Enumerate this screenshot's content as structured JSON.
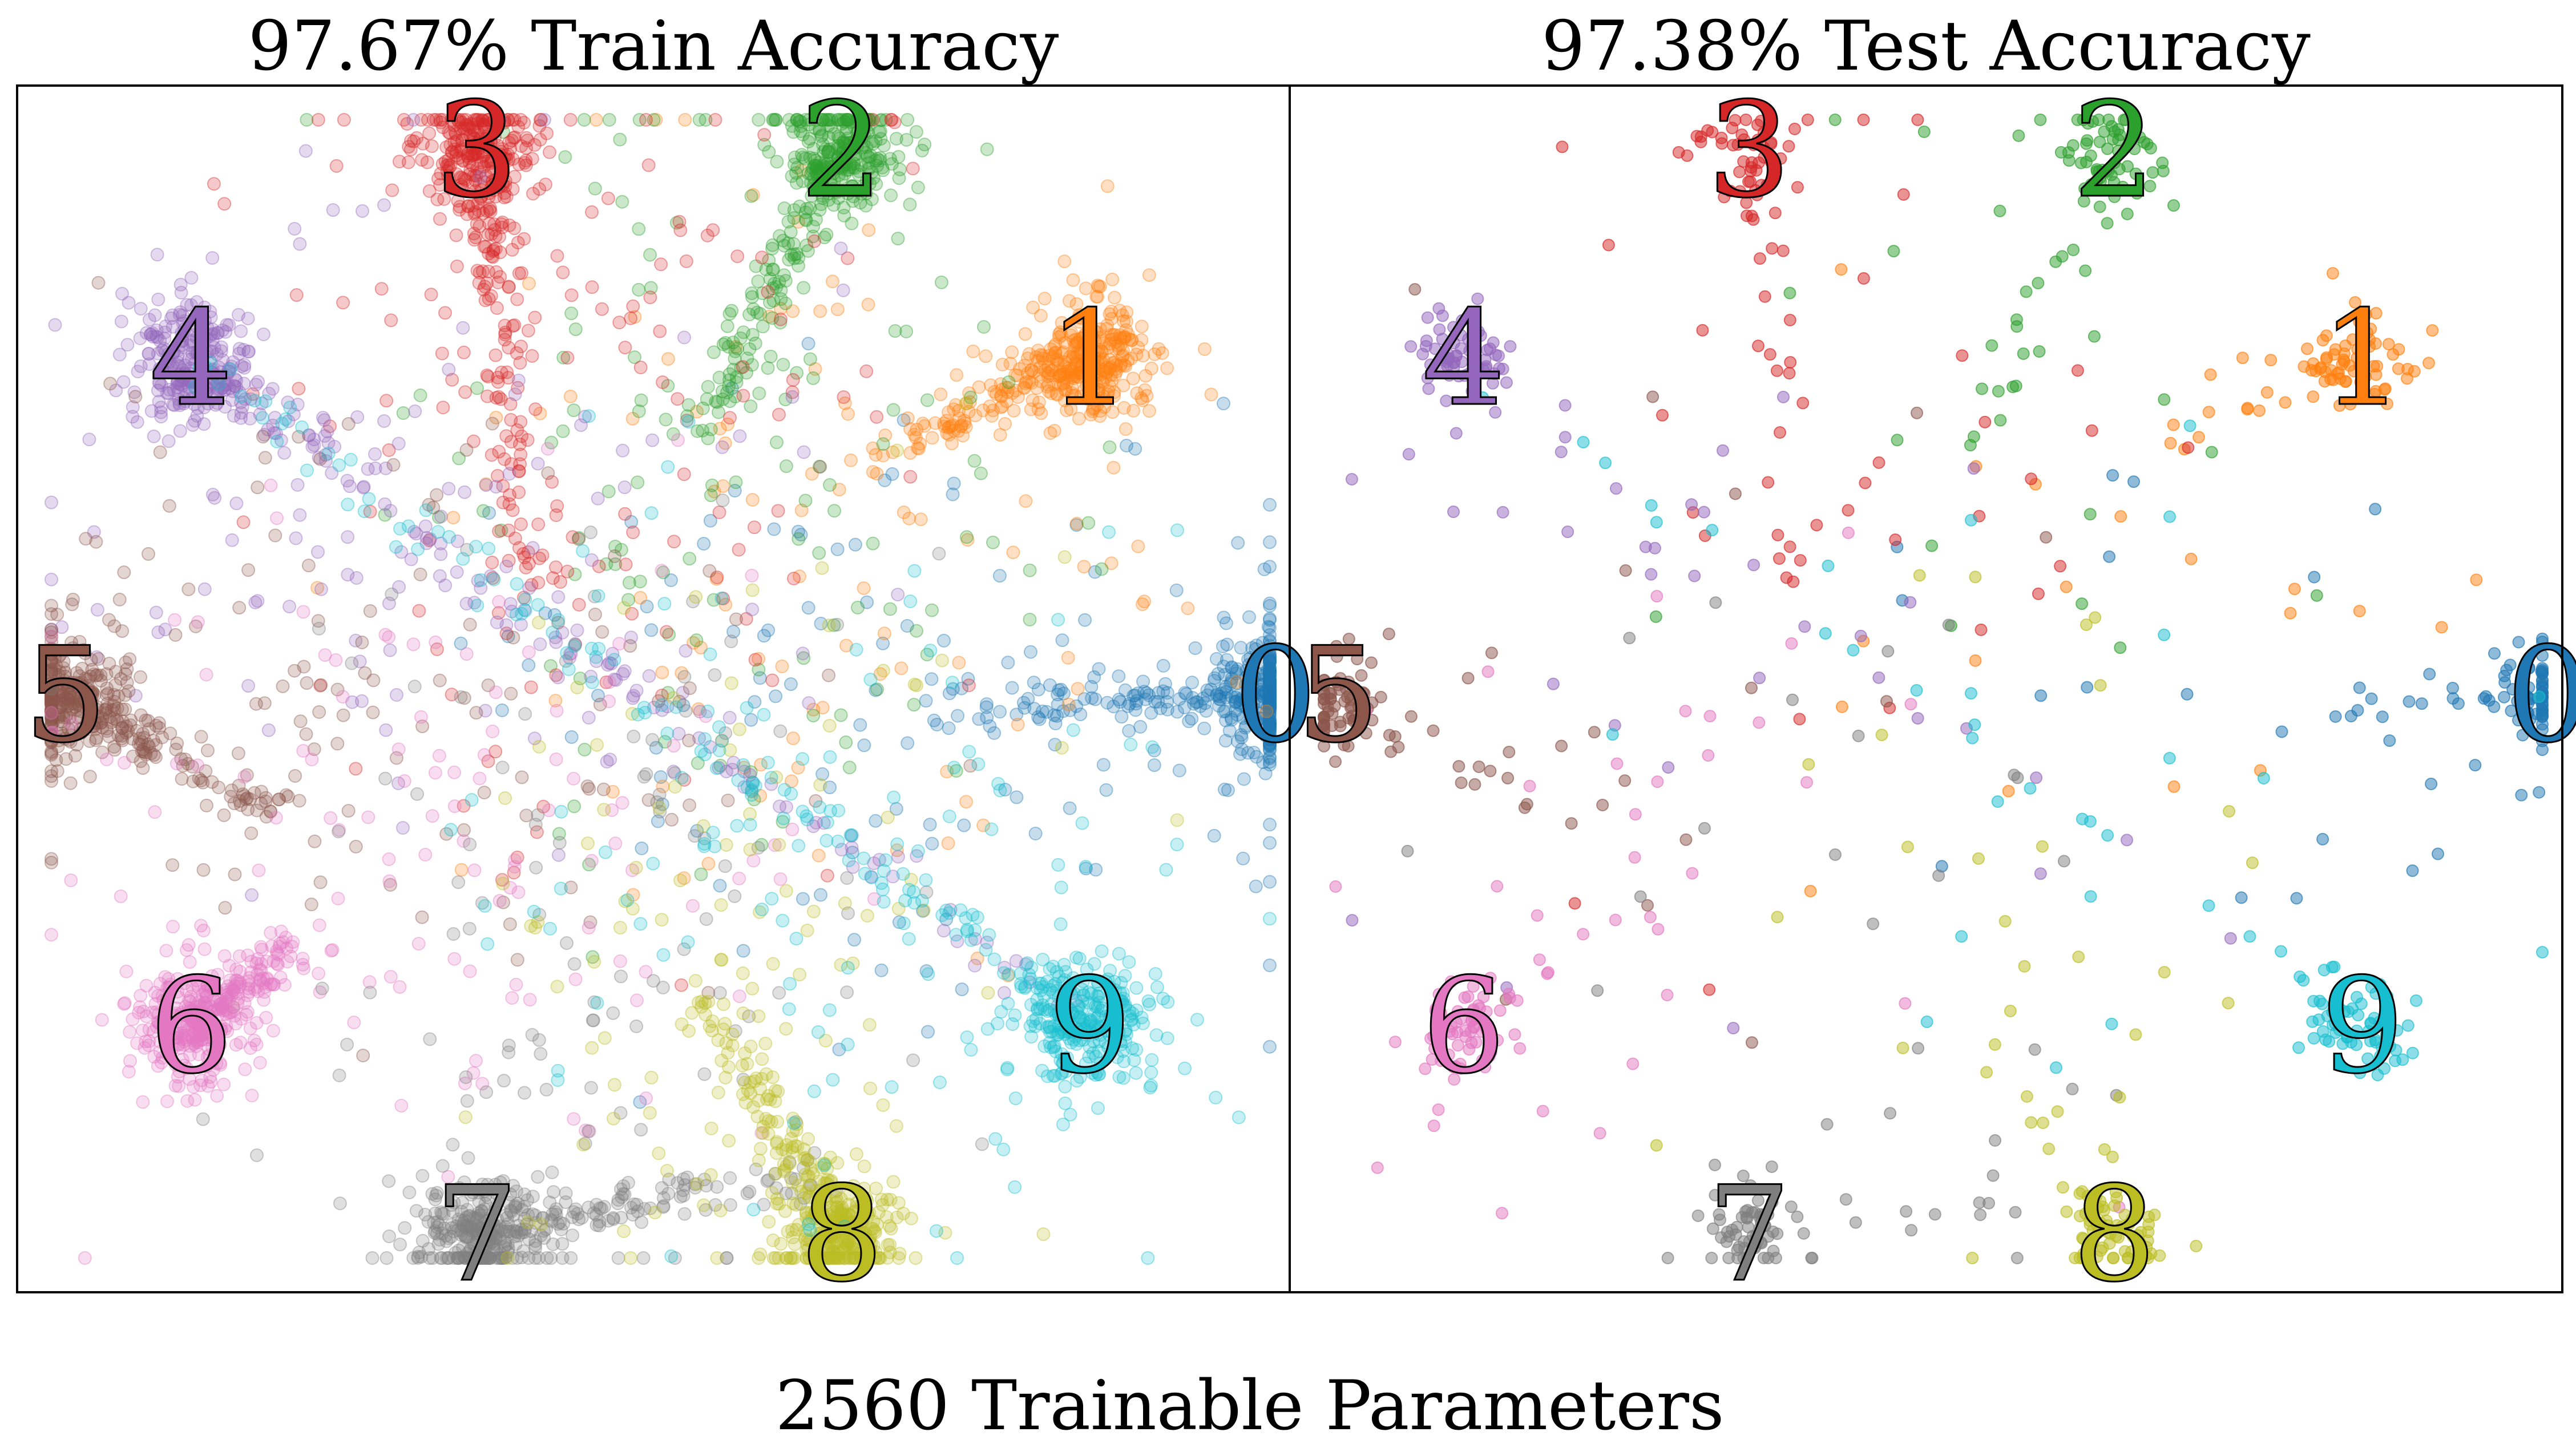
{
  "footer": "2560 Trainable Parameters",
  "colors": {
    "0": "#1f77b4",
    "1": "#ff7f0e",
    "2": "#2ca02c",
    "3": "#d62728",
    "4": "#9467bd",
    "5": "#8c564b",
    "6": "#e377c2",
    "7": "#7f7f7f",
    "8": "#bcbd22",
    "9": "#17becf"
  },
  "chart_data": [
    {
      "type": "scatter",
      "title": "97.67% Train Accuracy",
      "class_labels": [
        "0",
        "1",
        "2",
        "3",
        "4",
        "5",
        "6",
        "7",
        "8",
        "9"
      ],
      "class_anchor_order_clockwise": [
        "2",
        "1",
        "0",
        "9",
        "8",
        "7",
        "6",
        "5",
        "4",
        "3"
      ],
      "approx_points_shown": 5000,
      "point_alpha": 0.25,
      "grid": false,
      "xticks": [],
      "yticks": []
    },
    {
      "type": "scatter",
      "title": "97.38% Test Accuracy",
      "class_labels": [
        "0",
        "1",
        "2",
        "3",
        "4",
        "5",
        "6",
        "7",
        "8",
        "9"
      ],
      "class_anchor_order_clockwise": [
        "2",
        "1",
        "0",
        "9",
        "8",
        "7",
        "6",
        "5",
        "4",
        "3"
      ],
      "approx_points_shown": 1000,
      "point_alpha": 0.5,
      "grid": false,
      "xticks": [],
      "yticks": []
    }
  ]
}
